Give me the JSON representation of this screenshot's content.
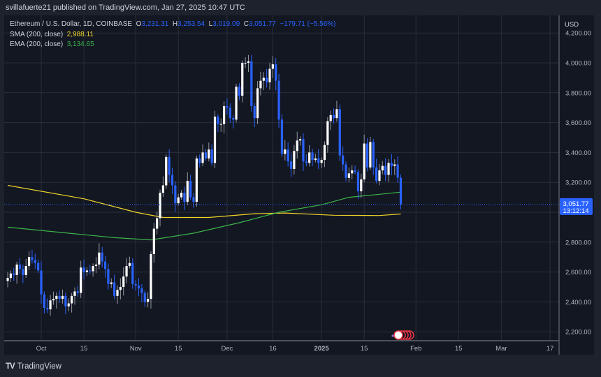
{
  "publisher_line": "svillafuerte21 published on TradingView.com, Jan 27, 2025 10:47 UTC",
  "legend": {
    "symbol": "Ethereum / U.S. Dollar, 1D, COINBASE",
    "o_label": "O",
    "o": "3,231.31",
    "h_label": "H",
    "h": "3,253.54",
    "l_label": "L",
    "l": "3,019.09",
    "c_label": "C",
    "c": "3,051.77",
    "change": "−179.71 (−5.56%)",
    "sma_label": "SMA (200, close)",
    "sma_value": "2,988.11",
    "ema_label": "EMA (200, close)",
    "ema_value": "3,134.65"
  },
  "currency": "USD",
  "last_price_label": "3,051.77",
  "countdown": "13:12:14",
  "brand": "TradingView",
  "colors": {
    "up": "#ffffff",
    "down": "#2962ff",
    "sma": "#f0d42a",
    "ema": "#3cb449",
    "price_tag": "#2962ff",
    "grid": "#2a2e39"
  },
  "chart_data": {
    "type": "candlestick",
    "ylim": [
      2100,
      4300
    ],
    "y_ticks": [
      2200,
      2400,
      2600,
      2800,
      3000,
      3200,
      3400,
      3600,
      3800,
      4000,
      4200
    ],
    "y_tick_labels": [
      "2,200.00",
      "2,400.00",
      "2,600.00",
      "2,800.00",
      "",
      "3,200.00",
      "3,400.00",
      "3,600.00",
      "3,800.00",
      "4,000.00",
      "4,200.00"
    ],
    "x_range": [
      "2024-09-19",
      "2025-03-20"
    ],
    "x_ticks": [
      {
        "date": "2024-10-01",
        "label": "Oct"
      },
      {
        "date": "2024-10-15",
        "label": "15"
      },
      {
        "date": "2024-11-01",
        "label": "Nov"
      },
      {
        "date": "2024-11-15",
        "label": "15"
      },
      {
        "date": "2024-12-01",
        "label": "Dec"
      },
      {
        "date": "2024-12-16",
        "label": "16"
      },
      {
        "date": "2025-01-01",
        "label": "2025",
        "bold": true
      },
      {
        "date": "2025-01-15",
        "label": "15"
      },
      {
        "date": "2025-02-01",
        "label": "Feb"
      },
      {
        "date": "2025-02-15",
        "label": "15"
      },
      {
        "date": "2025-03-01",
        "label": "Mar"
      },
      {
        "date": "2025-03-17",
        "label": "17"
      }
    ],
    "start_date": "2024-09-20",
    "closes": [
      2560,
      2590,
      2580,
      2650,
      2620,
      2580,
      2640,
      2700,
      2680,
      2660,
      2610,
      2450,
      2360,
      2350,
      2410,
      2420,
      2440,
      2420,
      2440,
      2370,
      2390,
      2440,
      2470,
      2460,
      2630,
      2600,
      2610,
      2605,
      2640,
      2650,
      2730,
      2670,
      2620,
      2520,
      2530,
      2440,
      2480,
      2500,
      2570,
      2640,
      2660,
      2520,
      2510,
      2490,
      2460,
      2400,
      2420,
      2720,
      2890,
      2960,
      3130,
      3180,
      3370,
      3250,
      3180,
      3060,
      3100,
      3130,
      3070,
      3210,
      3100,
      3070,
      3360,
      3330,
      3400,
      3360,
      3420,
      3330,
      3640,
      3590,
      3590,
      3710,
      3700,
      3630,
      3620,
      3840,
      3780,
      4000,
      4000,
      4010,
      3710,
      3630,
      3830,
      3880,
      3900,
      3870,
      3960,
      3990,
      3880,
      3620,
      3390,
      3420,
      3340,
      3290,
      3410,
      3480,
      3490,
      3340,
      3330,
      3400,
      3350,
      3360,
      3330,
      3350,
      3450,
      3610,
      3650,
      3630,
      3690,
      3380,
      3320,
      3230,
      3260,
      3280,
      3270,
      3140,
      3220,
      3460,
      3300,
      3470,
      3300,
      3210,
      3280,
      3310,
      3250,
      3330,
      3310,
      3320,
      3231.31,
      3051.77
    ],
    "last_candle": {
      "date": "2025-01-27",
      "open": 3231.31,
      "high": 3253.54,
      "low": 3019.09,
      "close": 3051.77
    },
    "series": [
      {
        "name": "SMA (200, close)",
        "points": [
          [
            "2024-09-20",
            3180
          ],
          [
            "2024-10-15",
            3090
          ],
          [
            "2024-11-01",
            3000
          ],
          [
            "2024-11-10",
            2965
          ],
          [
            "2024-11-25",
            2965
          ],
          [
            "2024-12-10",
            2990
          ],
          [
            "2024-12-20",
            2995
          ],
          [
            "2025-01-05",
            2980
          ],
          [
            "2025-01-20",
            2978
          ],
          [
            "2025-01-27",
            2988.11
          ]
        ]
      },
      {
        "name": "EMA (200, close)",
        "points": [
          [
            "2024-09-20",
            2900
          ],
          [
            "2024-10-10",
            2860
          ],
          [
            "2024-10-25",
            2830
          ],
          [
            "2024-11-06",
            2815
          ],
          [
            "2024-11-20",
            2860
          ],
          [
            "2024-12-05",
            2930
          ],
          [
            "2024-12-18",
            3000
          ],
          [
            "2025-01-01",
            3050
          ],
          [
            "2025-01-10",
            3100
          ],
          [
            "2025-01-20",
            3120
          ],
          [
            "2025-01-27",
            3134.65
          ]
        ]
      }
    ]
  }
}
